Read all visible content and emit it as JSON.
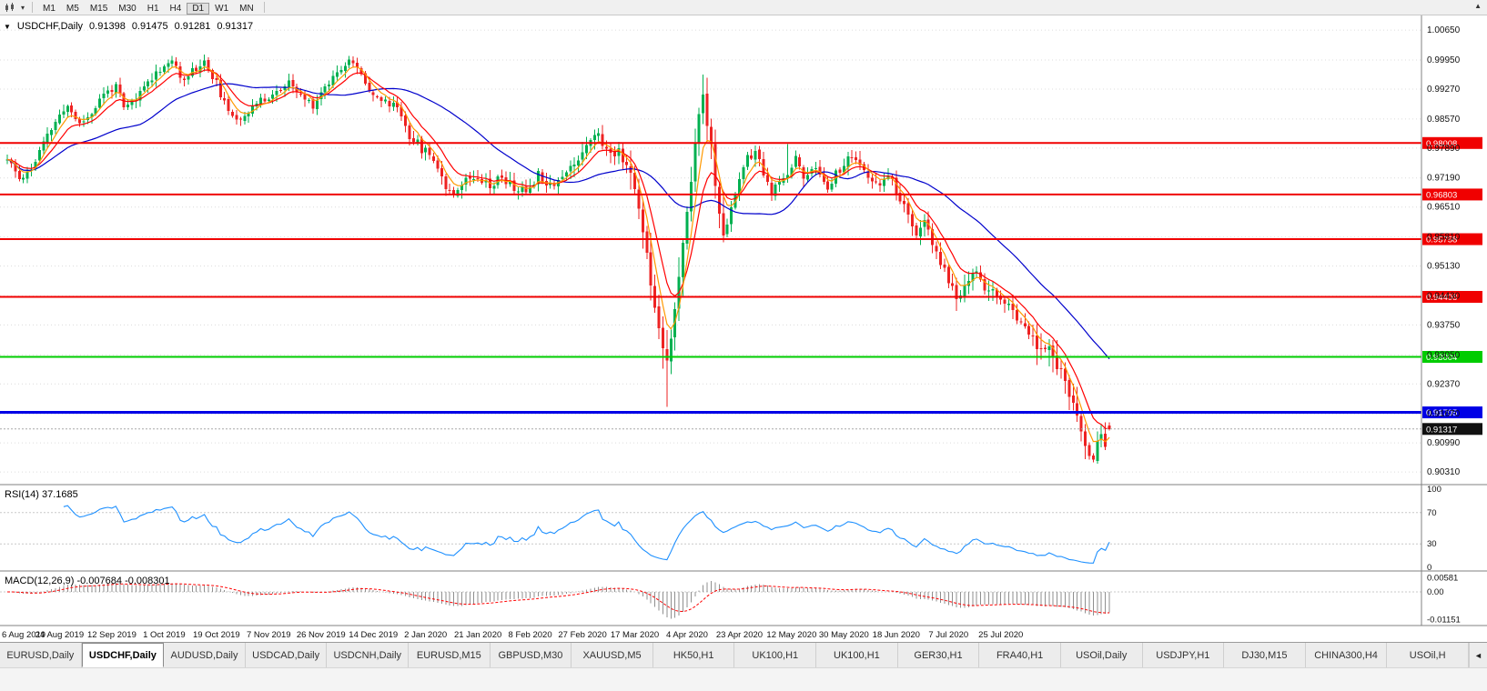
{
  "toolbar": {
    "timeframes": [
      "M1",
      "M5",
      "M15",
      "M30",
      "H1",
      "H4",
      "D1",
      "W1",
      "MN"
    ],
    "active": "D1",
    "caret_icon": "▾",
    "scroll_up_icon": "▲"
  },
  "chart_header": {
    "collapse_icon": "▼",
    "symbol_period": "USDCHF,Daily",
    "open": "0.91398",
    "high": "0.91475",
    "low": "0.91281",
    "close": "0.91317"
  },
  "panels": {
    "rsi_label": "RSI(14) 37.1685",
    "macd_label": "MACD(12,26,9) -0.007684 -0.008301"
  },
  "tabs": {
    "items": [
      "EURUSD,Daily",
      "USDCHF,Daily",
      "AUDUSD,Daily",
      "USDCAD,Daily",
      "USDCNH,Daily",
      "EURUSD,M15",
      "GBPUSD,M30",
      "XAUUSD,M5",
      "HK50,H1",
      "UK100,H1",
      "UK100,H1",
      "GER30,H1",
      "FRA40,H1",
      "USOil,Daily",
      "USDJPY,H1",
      "DJ30,M15",
      "CHINA300,H4",
      "USOil,H"
    ],
    "active_index": 1,
    "scroll_left_icon": "◄"
  },
  "chart_data": {
    "type": "candlestick",
    "title": "USDCHF,Daily",
    "current_ohlc": {
      "open": 0.91398,
      "high": 0.91475,
      "low": 0.91281,
      "close": 0.91317
    },
    "x_labels": [
      "6 Aug 2019",
      "24 Aug 2019",
      "12 Sep 2019",
      "1 Oct 2019",
      "19 Oct 2019",
      "7 Nov 2019",
      "26 Nov 2019",
      "14 Dec 2019",
      "2 Jan 2020",
      "21 Jan 2020",
      "8 Feb 2020",
      "27 Feb 2020",
      "17 Mar 2020",
      "4 Apr 2020",
      "23 Apr 2020",
      "12 May 2020",
      "30 May 2020",
      "18 Jun 2020",
      "7 Jul 2020",
      "25 Jul 2020"
    ],
    "y_axis_labels": [
      "1.00650",
      "0.99950",
      "0.99270",
      "0.98570",
      "0.97890",
      "0.97190",
      "0.96510",
      "0.95810",
      "0.95130",
      "0.94430",
      "0.93750",
      "0.93050",
      "0.92370",
      "0.91670",
      "0.90990",
      "0.90310"
    ],
    "y_range": [
      0.901,
      1.0078
    ],
    "n": 275,
    "seed": 11,
    "anchors": [
      [
        0,
        0.9762
      ],
      [
        3,
        0.9718
      ],
      [
        6,
        0.974
      ],
      [
        9,
        0.98
      ],
      [
        12,
        0.985
      ],
      [
        15,
        0.9888
      ],
      [
        18,
        0.9845
      ],
      [
        21,
        0.9872
      ],
      [
        24,
        0.9915
      ],
      [
        27,
        0.9935
      ],
      [
        29,
        0.988
      ],
      [
        32,
        0.9905
      ],
      [
        35,
        0.9945
      ],
      [
        38,
        0.9975
      ],
      [
        41,
        0.9995
      ],
      [
        43,
        0.995
      ],
      [
        46,
        0.997
      ],
      [
        49,
        0.999
      ],
      [
        52,
        0.994
      ],
      [
        55,
        0.9868
      ],
      [
        58,
        0.986
      ],
      [
        61,
        0.9885
      ],
      [
        64,
        0.9905
      ],
      [
        67,
        0.992
      ],
      [
        70,
        0.994
      ],
      [
        73,
        0.991
      ],
      [
        76,
        0.989
      ],
      [
        79,
        0.9932
      ],
      [
        82,
        0.997
      ],
      [
        85,
        0.9998
      ],
      [
        88,
        0.996
      ],
      [
        91,
        0.9915
      ],
      [
        94,
        0.9895
      ],
      [
        97,
        0.9888
      ],
      [
        100,
        0.982
      ],
      [
        103,
        0.9788
      ],
      [
        106,
        0.9768
      ],
      [
        109,
        0.97
      ],
      [
        111,
        0.9688
      ],
      [
        114,
        0.9715
      ],
      [
        117,
        0.9728
      ],
      [
        120,
        0.9702
      ],
      [
        123,
        0.9722
      ],
      [
        126,
        0.9695
      ],
      [
        129,
        0.9688
      ],
      [
        132,
        0.9728
      ],
      [
        135,
        0.9705
      ],
      [
        138,
        0.9722
      ],
      [
        141,
        0.9752
      ],
      [
        144,
        0.98
      ],
      [
        146,
        0.9828
      ],
      [
        148,
        0.98
      ],
      [
        150,
        0.9772
      ],
      [
        152,
        0.9786
      ],
      [
        154,
        0.9752
      ],
      [
        156,
        0.9692
      ],
      [
        158,
        0.96
      ],
      [
        160,
        0.948
      ],
      [
        162,
        0.9368
      ],
      [
        164,
        0.9296
      ],
      [
        166,
        0.9405
      ],
      [
        168,
        0.9558
      ],
      [
        170,
        0.9715
      ],
      [
        172,
        0.988
      ],
      [
        173,
        0.9902
      ],
      [
        175,
        0.9788
      ],
      [
        177,
        0.9625
      ],
      [
        178,
        0.958
      ],
      [
        180,
        0.9655
      ],
      [
        182,
        0.9715
      ],
      [
        184,
        0.9762
      ],
      [
        186,
        0.9782
      ],
      [
        188,
        0.9725
      ],
      [
        190,
        0.9685
      ],
      [
        192,
        0.9702
      ],
      [
        194,
        0.9732
      ],
      [
        196,
        0.9768
      ],
      [
        198,
        0.9718
      ],
      [
        200,
        0.9748
      ],
      [
        202,
        0.9722
      ],
      [
        204,
        0.9702
      ],
      [
        206,
        0.9728
      ],
      [
        208,
        0.9748
      ],
      [
        210,
        0.9772
      ],
      [
        212,
        0.9748
      ],
      [
        214,
        0.9715
      ],
      [
        216,
        0.97
      ],
      [
        218,
        0.9722
      ],
      [
        220,
        0.9708
      ],
      [
        222,
        0.9662
      ],
      [
        224,
        0.9628
      ],
      [
        226,
        0.9592
      ],
      [
        228,
        0.9612
      ],
      [
        230,
        0.9562
      ],
      [
        232,
        0.9518
      ],
      [
        234,
        0.9482
      ],
      [
        236,
        0.9435
      ],
      [
        238,
        0.9468
      ],
      [
        240,
        0.9502
      ],
      [
        242,
        0.9482
      ],
      [
        244,
        0.9452
      ],
      [
        246,
        0.9442
      ],
      [
        248,
        0.9425
      ],
      [
        250,
        0.9402
      ],
      [
        252,
        0.9392
      ],
      [
        254,
        0.9358
      ],
      [
        256,
        0.9322
      ],
      [
        258,
        0.933
      ],
      [
        260,
        0.93
      ],
      [
        262,
        0.9262
      ],
      [
        264,
        0.921
      ],
      [
        266,
        0.9155
      ],
      [
        268,
        0.91
      ],
      [
        270,
        0.9062
      ],
      [
        271,
        0.91
      ],
      [
        272,
        0.912
      ],
      [
        273,
        0.9098
      ],
      [
        274,
        0.9132
      ]
    ],
    "vol_zones": [
      [
        0,
        97,
        1.0
      ],
      [
        98,
        139,
        1.25
      ],
      [
        140,
        154,
        1.5
      ],
      [
        155,
        178,
        2.8
      ],
      [
        179,
        221,
        1.15
      ],
      [
        222,
        254,
        1.5
      ],
      [
        255,
        269,
        2.3
      ],
      [
        270,
        274,
        1.6
      ]
    ],
    "wick_overrides": [
      {
        "i": 41,
        "high": 1.0003
      },
      {
        "i": 86,
        "high": 1.0004
      },
      {
        "i": 164,
        "low": 0.9183
      },
      {
        "i": 194,
        "high": 0.9798
      },
      {
        "i": 236,
        "low": 0.9408
      },
      {
        "i": 269,
        "low": 0.9065
      },
      {
        "i": 270,
        "low": 0.9056
      }
    ],
    "horizontal_lines": [
      {
        "price": 0.98008,
        "label": "0.98008",
        "color": "#f00000",
        "width": 2
      },
      {
        "price": 0.96803,
        "label": "0.96803",
        "color": "#f00000",
        "width": 2
      },
      {
        "price": 0.95758,
        "label": "0.95758",
        "color": "#f00000",
        "width": 2
      },
      {
        "price": 0.94408,
        "label": "0.94408",
        "color": "#f00000",
        "width": 2
      },
      {
        "price": 0.93004,
        "label": "0.93004",
        "color": "#00cc00",
        "width": 2
      },
      {
        "price": 0.91705,
        "label": "0.91705",
        "color": "#0000e6",
        "width": 3
      }
    ],
    "current_price": {
      "label": "0.91317",
      "value": 0.91317,
      "tag_bg": "#111111"
    },
    "candle_colors": {
      "up": "#00b050",
      "down": "#ee2222"
    },
    "moving_averages": [
      {
        "type": "sma",
        "period": 34,
        "color": "#0000cc"
      },
      {
        "type": "ema",
        "period": 10,
        "color": "#ff0000"
      },
      {
        "type": "ema",
        "period": 5,
        "color": "#ff9900"
      }
    ],
    "rsi": {
      "period": 14,
      "value_text": "37.1685",
      "color": "#1e90ff",
      "levels": [
        "100",
        "70",
        "30",
        "0"
      ],
      "level_values": [
        100,
        70,
        30,
        0
      ],
      "level_lines": [
        70,
        30
      ]
    },
    "macd": {
      "fast": 12,
      "slow": 26,
      "signal": 9,
      "values_text": "-0.007684 -0.008301",
      "hist_color": "#8f8f8f",
      "signal_color": "#ff0000",
      "axis_labels": [
        {
          "text": "0.00581",
          "value": 0.00581
        },
        {
          "text": "0.00",
          "value": 0
        },
        {
          "text": "-0.01151",
          "value": -0.01151
        }
      ]
    }
  }
}
